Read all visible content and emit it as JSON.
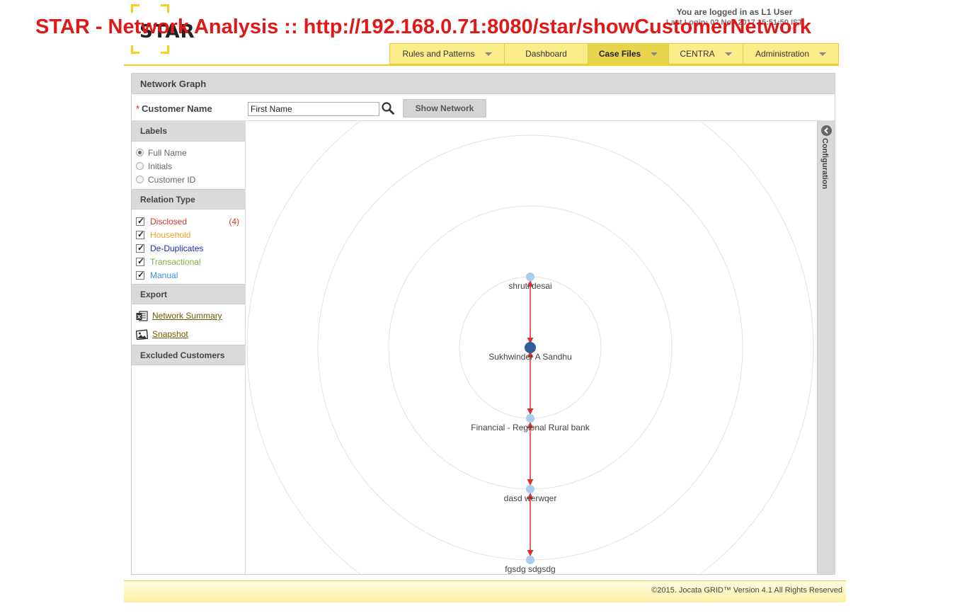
{
  "overlay_title": "STAR - Network Analysis :: http://192.168.0.71:8080/star/showCustomerNetwork",
  "logo_text": "STAR",
  "login": {
    "line1": "You are logged in as L1 User",
    "line2": "Last Login: 02 Nov 2017 15:51:50 IST"
  },
  "nav": {
    "tabs": [
      {
        "label": "Rules and Patterns",
        "dropdown": true,
        "active": false
      },
      {
        "label": "Dashboard",
        "dropdown": false,
        "active": false
      },
      {
        "label": "Case Files",
        "dropdown": true,
        "active": true
      },
      {
        "label": "CENTRA",
        "dropdown": true,
        "active": false
      },
      {
        "label": "Administration",
        "dropdown": true,
        "active": false
      }
    ]
  },
  "panel": {
    "title": "Network Graph",
    "customer_name_label": "Customer Name",
    "required_mark": "*",
    "customer_name_value": "First Name",
    "show_network_label": "Show Network"
  },
  "sidebar": {
    "labels_head": "Labels",
    "label_options": [
      {
        "label": "Full Name",
        "selected": true
      },
      {
        "label": "Initials",
        "selected": false
      },
      {
        "label": "Customer ID",
        "selected": false
      }
    ],
    "relation_head": "Relation Type",
    "relations": [
      {
        "label": "Disclosed",
        "count": "(4)",
        "color": "#d9342b",
        "checked": true
      },
      {
        "label": "Household",
        "count": "",
        "color": "#f0a11e",
        "checked": true
      },
      {
        "label": "De-Duplicates",
        "count": "",
        "color": "#1c2bb4",
        "checked": true
      },
      {
        "label": "Transactional",
        "count": "",
        "color": "#7cb342",
        "checked": true
      },
      {
        "label": "Manual",
        "count": "",
        "color": "#3d8fe0",
        "checked": true
      }
    ],
    "export_head": "Export",
    "export_items": [
      {
        "label": "Network Summary",
        "icon": "excel-icon"
      },
      {
        "label": "Snapshot",
        "icon": "image-icon"
      }
    ],
    "excluded_head": "Excluded Customers"
  },
  "config_label": "Configuration",
  "graph": {
    "nodes": [
      {
        "label": "shruti desai",
        "type": "related"
      },
      {
        "label": "Sukhwinder A Sandhu",
        "type": "center"
      },
      {
        "label": "Financial - Regional Rural bank",
        "type": "related"
      },
      {
        "label": "dasd werwqer",
        "type": "related"
      },
      {
        "label": "fgsdg sdgsdg",
        "type": "related"
      }
    ],
    "edge_color": "#d9342b",
    "center_color": "#2f5f9a",
    "node_color": "#a9cdef"
  },
  "footer": "©2015. Jocata GRID™ Version 4.1 All Rights Reserved"
}
